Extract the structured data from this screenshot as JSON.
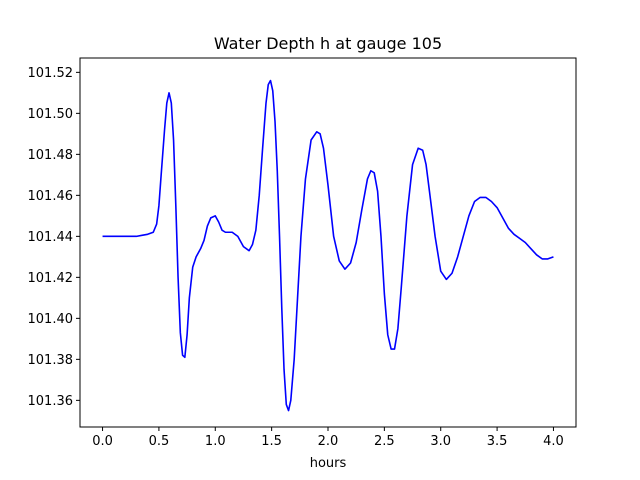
{
  "chart_data": {
    "type": "line",
    "title": "Water Depth h at gauge 105",
    "xlabel": "hours",
    "ylabel": "",
    "xlim": [
      -0.2,
      4.2
    ],
    "ylim": [
      101.347,
      101.527
    ],
    "xticks": [
      0.0,
      0.5,
      1.0,
      1.5,
      2.0,
      2.5,
      3.0,
      3.5,
      4.0
    ],
    "xtick_labels": [
      "0.0",
      "0.5",
      "1.0",
      "1.5",
      "2.0",
      "2.5",
      "3.0",
      "3.5",
      "4.0"
    ],
    "yticks": [
      101.36,
      101.38,
      101.4,
      101.42,
      101.44,
      101.46,
      101.48,
      101.5,
      101.52
    ],
    "ytick_labels": [
      "101.36",
      "101.38",
      "101.40",
      "101.42",
      "101.44",
      "101.46",
      "101.48",
      "101.50",
      "101.52"
    ],
    "grid": false,
    "series": [
      {
        "color": "#0000ff",
        "x": [
          0.0,
          0.1,
          0.2,
          0.3,
          0.35,
          0.4,
          0.45,
          0.48,
          0.5,
          0.52,
          0.55,
          0.57,
          0.59,
          0.61,
          0.63,
          0.65,
          0.67,
          0.69,
          0.71,
          0.73,
          0.75,
          0.77,
          0.8,
          0.83,
          0.87,
          0.9,
          0.93,
          0.96,
          1.0,
          1.03,
          1.06,
          1.09,
          1.12,
          1.15,
          1.2,
          1.25,
          1.3,
          1.33,
          1.36,
          1.39,
          1.42,
          1.45,
          1.47,
          1.49,
          1.51,
          1.53,
          1.55,
          1.57,
          1.59,
          1.61,
          1.63,
          1.65,
          1.67,
          1.7,
          1.73,
          1.76,
          1.8,
          1.85,
          1.9,
          1.93,
          1.96,
          2.0,
          2.05,
          2.1,
          2.15,
          2.2,
          2.25,
          2.3,
          2.35,
          2.38,
          2.41,
          2.44,
          2.47,
          2.5,
          2.53,
          2.56,
          2.59,
          2.62,
          2.65,
          2.7,
          2.75,
          2.8,
          2.84,
          2.87,
          2.9,
          2.95,
          3.0,
          3.05,
          3.1,
          3.15,
          3.2,
          3.25,
          3.3,
          3.35,
          3.4,
          3.45,
          3.5,
          3.55,
          3.6,
          3.65,
          3.7,
          3.75,
          3.8,
          3.85,
          3.9,
          3.95,
          4.0
        ],
        "y": [
          101.44,
          101.44,
          101.44,
          101.44,
          101.4405,
          101.441,
          101.442,
          101.446,
          101.455,
          101.47,
          101.492,
          101.505,
          101.51,
          101.505,
          101.487,
          101.455,
          101.42,
          101.393,
          101.382,
          101.381,
          101.392,
          101.41,
          101.425,
          101.43,
          101.434,
          101.438,
          101.445,
          101.449,
          101.45,
          101.447,
          101.443,
          101.442,
          101.442,
          101.442,
          101.44,
          101.435,
          101.433,
          101.436,
          101.443,
          101.46,
          101.483,
          101.505,
          101.514,
          101.516,
          101.511,
          101.496,
          101.472,
          101.44,
          101.405,
          101.375,
          101.358,
          101.355,
          101.36,
          101.38,
          101.41,
          101.44,
          101.468,
          101.487,
          101.491,
          101.49,
          101.483,
          101.465,
          101.44,
          101.428,
          101.424,
          101.427,
          101.437,
          101.453,
          101.468,
          101.472,
          101.471,
          101.462,
          101.44,
          101.412,
          101.392,
          101.385,
          101.385,
          101.395,
          101.415,
          101.45,
          101.475,
          101.483,
          101.482,
          101.475,
          101.462,
          101.44,
          101.423,
          101.419,
          101.422,
          101.43,
          101.44,
          101.45,
          101.457,
          101.459,
          101.459,
          101.457,
          101.454,
          101.449,
          101.444,
          101.441,
          101.439,
          101.437,
          101.434,
          101.431,
          101.429,
          101.429,
          101.43
        ]
      }
    ]
  }
}
